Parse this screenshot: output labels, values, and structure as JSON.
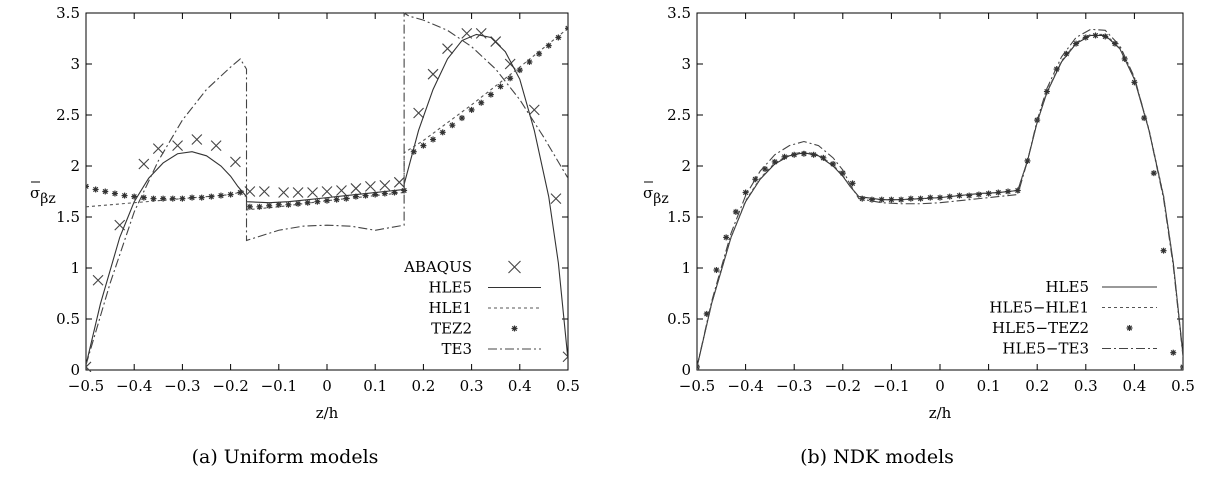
{
  "chart_data": [
    {
      "type": "line",
      "caption": "(a) Uniform models",
      "xlabel": "z/h",
      "ylabel": {
        "main": "σ",
        "sub": "βz"
      },
      "xlim": [
        -0.5,
        0.5
      ],
      "ylim": [
        0,
        3.5
      ],
      "xticks": [
        -0.5,
        -0.4,
        -0.3,
        -0.2,
        -0.1,
        0,
        0.1,
        0.2,
        0.3,
        0.4,
        0.5
      ],
      "xtick_labels": [
        "−0.5",
        "−0.4",
        "−0.3",
        "−0.2",
        "−0.1",
        "0",
        "0.1",
        "0.2",
        "0.3",
        "0.4",
        "0.5"
      ],
      "yticks": [
        0,
        0.5,
        1,
        1.5,
        2,
        2.5,
        3,
        3.5
      ],
      "ytick_labels": [
        "0",
        "0.5",
        "1",
        "1.5",
        "2",
        "2.5",
        "3",
        "3.5"
      ],
      "grid": false,
      "legend_position": "bottom-right",
      "series": [
        {
          "name": "ABAQUS",
          "style": "cross",
          "color": "#444444",
          "x": [
            -0.5,
            -0.475,
            -0.43,
            -0.38,
            -0.35,
            -0.31,
            -0.27,
            -0.23,
            -0.19,
            -0.16,
            -0.13,
            -0.09,
            -0.06,
            -0.03,
            0.0,
            0.03,
            0.06,
            0.09,
            0.12,
            0.15,
            0.19,
            0.22,
            0.25,
            0.29,
            0.32,
            0.35,
            0.38,
            0.43,
            0.475,
            0.5
          ],
          "y": [
            0.03,
            0.88,
            1.42,
            2.02,
            2.17,
            2.2,
            2.26,
            2.2,
            2.04,
            1.75,
            1.75,
            1.74,
            1.74,
            1.74,
            1.75,
            1.76,
            1.78,
            1.8,
            1.81,
            1.84,
            2.52,
            2.9,
            3.15,
            3.3,
            3.3,
            3.22,
            3.0,
            2.55,
            1.68,
            0.13
          ]
        },
        {
          "name": "HLE5",
          "style": "solid",
          "color": "#333333",
          "x": [
            -0.5,
            -0.47,
            -0.43,
            -0.4,
            -0.37,
            -0.34,
            -0.31,
            -0.28,
            -0.25,
            -0.22,
            -0.2,
            -0.185,
            -0.167,
            -0.167,
            -0.12,
            -0.08,
            -0.04,
            0.0,
            0.04,
            0.08,
            0.12,
            0.16,
            0.16,
            0.19,
            0.22,
            0.25,
            0.28,
            0.31,
            0.34,
            0.37,
            0.4,
            0.43,
            0.46,
            0.48,
            0.5
          ],
          "y": [
            0.05,
            0.65,
            1.3,
            1.65,
            1.88,
            2.03,
            2.12,
            2.14,
            2.1,
            2.0,
            1.9,
            1.8,
            1.7,
            1.65,
            1.64,
            1.65,
            1.67,
            1.69,
            1.71,
            1.73,
            1.75,
            1.77,
            1.82,
            2.35,
            2.75,
            3.05,
            3.23,
            3.29,
            3.26,
            3.12,
            2.85,
            2.35,
            1.7,
            1.05,
            0.1
          ]
        },
        {
          "name": "HLE1",
          "style": "dashed",
          "color": "#555555",
          "x": [
            -0.5,
            -0.4,
            -0.3,
            -0.2,
            -0.167,
            -0.167,
            -0.1,
            0.0,
            0.1,
            0.16,
            0.16,
            0.2,
            0.3,
            0.4,
            0.5
          ],
          "y": [
            1.6,
            1.64,
            1.68,
            1.72,
            1.76,
            1.57,
            1.6,
            1.66,
            1.71,
            1.74,
            2.13,
            2.25,
            2.6,
            2.97,
            3.35
          ]
        },
        {
          "name": "TEZ2",
          "style": "star",
          "color": "#333333",
          "x": [
            -0.5,
            -0.48,
            -0.46,
            -0.44,
            -0.42,
            -0.4,
            -0.38,
            -0.36,
            -0.34,
            -0.32,
            -0.3,
            -0.28,
            -0.26,
            -0.24,
            -0.22,
            -0.2,
            -0.18,
            -0.16,
            -0.14,
            -0.12,
            -0.1,
            -0.08,
            -0.06,
            -0.04,
            -0.02,
            0.0,
            0.02,
            0.04,
            0.06,
            0.08,
            0.1,
            0.12,
            0.14,
            0.16,
            0.18,
            0.2,
            0.22,
            0.24,
            0.26,
            0.28,
            0.3,
            0.32,
            0.34,
            0.36,
            0.38,
            0.4,
            0.42,
            0.44,
            0.46,
            0.48,
            0.5
          ],
          "y": [
            1.8,
            1.77,
            1.75,
            1.73,
            1.71,
            1.7,
            1.69,
            1.68,
            1.68,
            1.68,
            1.68,
            1.69,
            1.69,
            1.7,
            1.71,
            1.72,
            1.74,
            1.6,
            1.6,
            1.61,
            1.62,
            1.62,
            1.63,
            1.64,
            1.65,
            1.66,
            1.67,
            1.68,
            1.7,
            1.71,
            1.72,
            1.73,
            1.74,
            1.76,
            2.14,
            2.2,
            2.26,
            2.33,
            2.4,
            2.47,
            2.55,
            2.62,
            2.7,
            2.78,
            2.86,
            2.94,
            3.02,
            3.1,
            3.18,
            3.26,
            3.35
          ]
        },
        {
          "name": "TE3",
          "style": "dashdot",
          "color": "#444444",
          "x": [
            -0.5,
            -0.45,
            -0.4,
            -0.35,
            -0.3,
            -0.25,
            -0.2,
            -0.18,
            -0.167,
            -0.167,
            -0.1,
            -0.05,
            0.0,
            0.05,
            0.1,
            0.16,
            0.16,
            0.17,
            0.2,
            0.25,
            0.3,
            0.35,
            0.4,
            0.45,
            0.5
          ],
          "y": [
            0.05,
            0.85,
            1.55,
            2.05,
            2.45,
            2.75,
            2.97,
            3.05,
            2.95,
            1.27,
            1.37,
            1.41,
            1.42,
            1.41,
            1.37,
            1.42,
            3.5,
            3.47,
            3.43,
            3.33,
            3.17,
            2.95,
            2.65,
            2.28,
            1.88
          ]
        }
      ]
    },
    {
      "type": "line",
      "caption": "(b) NDK models",
      "xlabel": "z/h",
      "ylabel": {
        "main": "σ",
        "sub": "βz"
      },
      "xlim": [
        -0.5,
        0.5
      ],
      "ylim": [
        0,
        3.5
      ],
      "xticks": [
        -0.5,
        -0.4,
        -0.3,
        -0.2,
        -0.1,
        0,
        0.1,
        0.2,
        0.3,
        0.4,
        0.5
      ],
      "xtick_labels": [
        "−0.5",
        "−0.4",
        "−0.3",
        "−0.2",
        "−0.1",
        "0",
        "0.1",
        "0.2",
        "0.3",
        "0.4",
        "0.5"
      ],
      "yticks": [
        0,
        0.5,
        1,
        1.5,
        2,
        2.5,
        3,
        3.5
      ],
      "ytick_labels": [
        "0",
        "0.5",
        "1",
        "1.5",
        "2",
        "2.5",
        "3",
        "3.5"
      ],
      "grid": false,
      "legend_position": "bottom-right",
      "series": [
        {
          "name": "HLE5",
          "style": "solid",
          "color": "#333333",
          "x": [
            -0.5,
            -0.47,
            -0.43,
            -0.4,
            -0.37,
            -0.34,
            -0.31,
            -0.28,
            -0.25,
            -0.22,
            -0.2,
            -0.185,
            -0.167,
            -0.12,
            -0.08,
            -0.04,
            0.0,
            0.04,
            0.08,
            0.12,
            0.16,
            0.18,
            0.2,
            0.22,
            0.25,
            0.28,
            0.31,
            0.34,
            0.37,
            0.4,
            0.43,
            0.46,
            0.48,
            0.5
          ],
          "y": [
            0.03,
            0.65,
            1.3,
            1.65,
            1.87,
            2.02,
            2.1,
            2.13,
            2.1,
            2.0,
            1.9,
            1.8,
            1.7,
            1.67,
            1.67,
            1.68,
            1.69,
            1.71,
            1.73,
            1.74,
            1.76,
            2.05,
            2.43,
            2.72,
            3.02,
            3.2,
            3.28,
            3.28,
            3.15,
            2.85,
            2.35,
            1.7,
            1.05,
            0.15
          ]
        },
        {
          "name": "HLE5−HLE1",
          "style": "dashed",
          "color": "#555555",
          "x": [
            -0.5,
            -0.47,
            -0.43,
            -0.4,
            -0.37,
            -0.34,
            -0.31,
            -0.28,
            -0.25,
            -0.22,
            -0.2,
            -0.185,
            -0.167,
            -0.12,
            -0.08,
            -0.04,
            0.0,
            0.04,
            0.08,
            0.12,
            0.16,
            0.18,
            0.2,
            0.22,
            0.25,
            0.28,
            0.31,
            0.34,
            0.37,
            0.4,
            0.43,
            0.46,
            0.48,
            0.5
          ],
          "y": [
            0.03,
            0.65,
            1.3,
            1.66,
            1.88,
            2.03,
            2.11,
            2.14,
            2.11,
            2.01,
            1.91,
            1.8,
            1.7,
            1.67,
            1.67,
            1.68,
            1.69,
            1.71,
            1.73,
            1.74,
            1.76,
            2.05,
            2.43,
            2.73,
            3.03,
            3.21,
            3.29,
            3.29,
            3.16,
            2.86,
            2.36,
            1.71,
            1.05,
            0.15
          ]
        },
        {
          "name": "HLE5−TEZ2",
          "style": "star",
          "color": "#333333",
          "x": [
            -0.5,
            -0.48,
            -0.46,
            -0.44,
            -0.42,
            -0.4,
            -0.38,
            -0.36,
            -0.34,
            -0.32,
            -0.3,
            -0.28,
            -0.26,
            -0.24,
            -0.22,
            -0.2,
            -0.18,
            -0.16,
            -0.14,
            -0.12,
            -0.1,
            -0.08,
            -0.06,
            -0.04,
            -0.02,
            0.0,
            0.02,
            0.04,
            0.06,
            0.08,
            0.1,
            0.12,
            0.14,
            0.16,
            0.18,
            0.2,
            0.22,
            0.24,
            0.26,
            0.28,
            0.3,
            0.32,
            0.34,
            0.36,
            0.38,
            0.4,
            0.42,
            0.44,
            0.46,
            0.48,
            0.5
          ],
          "y": [
            0.03,
            0.55,
            0.98,
            1.3,
            1.55,
            1.74,
            1.87,
            1.97,
            2.04,
            2.09,
            2.11,
            2.12,
            2.11,
            2.08,
            2.02,
            1.93,
            1.83,
            1.68,
            1.67,
            1.67,
            1.67,
            1.67,
            1.68,
            1.68,
            1.69,
            1.69,
            1.7,
            1.71,
            1.71,
            1.72,
            1.73,
            1.74,
            1.75,
            1.76,
            2.05,
            2.45,
            2.73,
            2.95,
            3.1,
            3.2,
            3.26,
            3.28,
            3.27,
            3.2,
            3.05,
            2.82,
            2.47,
            1.93,
            1.17,
            0.17,
            0.03
          ]
        },
        {
          "name": "HLE5−TE3",
          "style": "dashdot",
          "color": "#444444",
          "x": [
            -0.5,
            -0.47,
            -0.43,
            -0.4,
            -0.37,
            -0.34,
            -0.31,
            -0.28,
            -0.25,
            -0.22,
            -0.2,
            -0.185,
            -0.167,
            -0.12,
            -0.08,
            -0.04,
            0.0,
            0.04,
            0.08,
            0.12,
            0.16,
            0.18,
            0.2,
            0.22,
            0.25,
            0.28,
            0.31,
            0.34,
            0.37,
            0.4,
            0.43,
            0.46,
            0.48,
            0.5
          ],
          "y": [
            0.03,
            0.67,
            1.34,
            1.71,
            1.95,
            2.11,
            2.2,
            2.24,
            2.2,
            2.08,
            1.96,
            1.82,
            1.68,
            1.64,
            1.63,
            1.63,
            1.64,
            1.66,
            1.68,
            1.7,
            1.72,
            2.05,
            2.45,
            2.76,
            3.07,
            3.26,
            3.34,
            3.33,
            3.18,
            2.87,
            2.35,
            1.68,
            1.02,
            0.13
          ]
        }
      ]
    }
  ]
}
